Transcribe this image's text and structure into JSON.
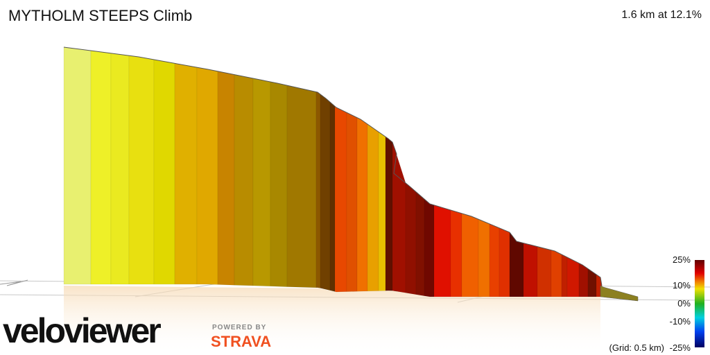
{
  "header": {
    "title": "MYTHOLM STEEPS Climb",
    "stats": "1.6 km at 12.1%"
  },
  "legend": {
    "labels": [
      "25%",
      "10%",
      "0%",
      "-10%",
      "-25%"
    ],
    "grid_note": "(Grid: 0.5 km)"
  },
  "branding": {
    "logo": "veloviewer",
    "powered_by": "POWERED BY",
    "partner": "STRAVA"
  }
}
